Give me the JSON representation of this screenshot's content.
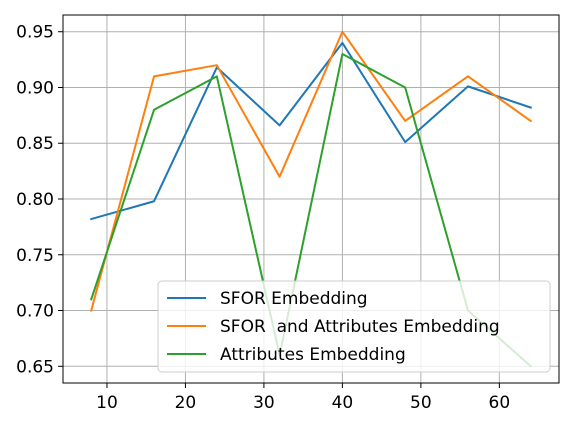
{
  "chart_data": {
    "type": "line",
    "title": "",
    "xlabel": "",
    "ylabel": "",
    "x": [
      8,
      16,
      24,
      32,
      40,
      48,
      56,
      64
    ],
    "xlim": [
      4.4,
      67.6
    ],
    "ylim": [
      0.635,
      0.965
    ],
    "xticks": [
      10,
      20,
      30,
      40,
      50,
      60
    ],
    "yticks": [
      0.65,
      0.7,
      0.75,
      0.8,
      0.85,
      0.9,
      0.95
    ],
    "xtick_labels": [
      "10",
      "20",
      "30",
      "40",
      "50",
      "60"
    ],
    "ytick_labels": [
      "0.65",
      "0.70",
      "0.75",
      "0.80",
      "0.85",
      "0.90",
      "0.95"
    ],
    "grid": true,
    "legend_position": "lower-right",
    "series": [
      {
        "name": "SFOR Embedding",
        "color": "#1f77b4",
        "values": [
          0.782,
          0.798,
          0.918,
          0.866,
          0.94,
          0.851,
          0.901,
          0.882
        ]
      },
      {
        "name": "SFOR  and Attributes Embedding",
        "color": "#ff7f0e",
        "values": [
          0.7,
          0.91,
          0.92,
          0.82,
          0.95,
          0.87,
          0.91,
          0.87
        ]
      },
      {
        "name": "Attributes Embedding",
        "color": "#2ca02c",
        "values": [
          0.71,
          0.88,
          0.91,
          0.66,
          0.93,
          0.9,
          0.7,
          0.65
        ]
      }
    ]
  }
}
